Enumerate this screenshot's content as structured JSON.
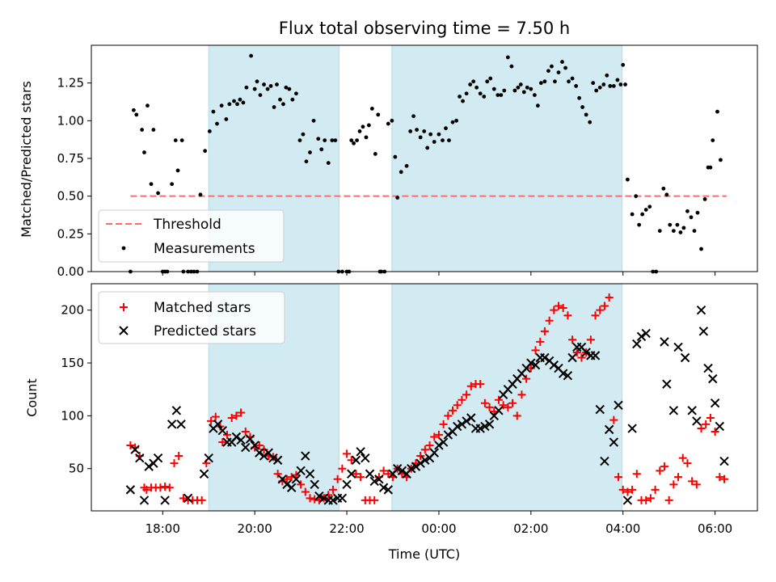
{
  "chart_data": [
    {
      "type": "scatter",
      "title": "Flux total observing time = 7.50 h",
      "xlabel": "",
      "ylabel": "Matched/Predicted stars",
      "ylim": [
        0,
        1.5
      ],
      "yticks": [
        "0.00",
        "0.25",
        "0.50",
        "0.75",
        "1.00",
        "1.25"
      ],
      "highlight_color": "#add8e6",
      "highlight_bands": [
        [
          19.0,
          21.83
        ],
        [
          22.98,
          27.98
        ]
      ],
      "threshold": {
        "name": "Threshold",
        "y": 0.5,
        "x_range": [
          17.3,
          30.25
        ],
        "color": "#ff6b6b",
        "style": "dashed"
      },
      "legend": {
        "location": "lower-left",
        "entries": [
          "Threshold",
          "Measurements"
        ]
      },
      "series": [
        {
          "name": "Measurements",
          "marker": "dot",
          "color": "#000000",
          "x": [
            17.3,
            17.37,
            17.43,
            17.55,
            17.6,
            17.67,
            17.75,
            17.8,
            17.9,
            18.0,
            18.05,
            18.1,
            18.2,
            18.28,
            18.33,
            18.42,
            18.45,
            18.55,
            18.62,
            18.68,
            18.75,
            18.82,
            18.92,
            19.02,
            19.1,
            19.18,
            19.28,
            19.38,
            19.45,
            19.55,
            19.62,
            19.68,
            19.75,
            19.82,
            19.92,
            20.0,
            20.05,
            20.12,
            20.2,
            20.28,
            20.35,
            20.42,
            20.48,
            20.55,
            20.62,
            20.68,
            20.75,
            20.82,
            20.9,
            20.98,
            21.05,
            21.12,
            21.2,
            21.28,
            21.38,
            21.45,
            21.52,
            21.6,
            21.68,
            21.75,
            21.82,
            21.9,
            22.0,
            22.05,
            22.1,
            22.15,
            22.22,
            22.28,
            22.35,
            22.42,
            22.48,
            22.55,
            22.62,
            22.68,
            22.72,
            22.75,
            22.82,
            22.9,
            22.98,
            23.05,
            23.1,
            23.18,
            23.3,
            23.38,
            23.45,
            23.52,
            23.6,
            23.68,
            23.75,
            23.82,
            23.9,
            24.0,
            24.08,
            24.15,
            24.22,
            24.3,
            24.38,
            24.45,
            24.52,
            24.6,
            24.68,
            24.75,
            24.82,
            24.9,
            24.98,
            25.05,
            25.12,
            25.2,
            25.28,
            25.35,
            25.42,
            25.5,
            25.58,
            25.65,
            25.72,
            25.78,
            25.85,
            25.92,
            26.0,
            26.08,
            26.15,
            26.22,
            26.3,
            26.38,
            26.45,
            26.52,
            26.6,
            26.68,
            26.75,
            26.82,
            26.9,
            26.98,
            27.05,
            27.12,
            27.2,
            27.28,
            27.35,
            27.42,
            27.5,
            27.58,
            27.65,
            27.72,
            27.8,
            27.88,
            27.95,
            28.0,
            28.05,
            28.1,
            28.2,
            28.28,
            28.35,
            28.42,
            28.5,
            28.58,
            28.65,
            28.72,
            28.8,
            28.88,
            28.95,
            29.02,
            29.1,
            29.18,
            29.25,
            29.32,
            29.4,
            29.48,
            29.55,
            29.62,
            29.7,
            29.78,
            29.85,
            29.9,
            29.95,
            30.05,
            30.12
          ],
          "y": [
            0.0,
            1.07,
            1.04,
            0.94,
            0.79,
            1.1,
            0.58,
            0.94,
            0.52,
            0.0,
            0.0,
            0.0,
            0.58,
            0.87,
            0.67,
            0.87,
            0.0,
            0.0,
            0.0,
            0.0,
            0.0,
            0.51,
            0.8,
            0.93,
            1.06,
            0.98,
            1.1,
            1.01,
            1.11,
            1.13,
            1.11,
            1.14,
            1.12,
            1.22,
            1.43,
            1.21,
            1.26,
            1.17,
            1.24,
            1.21,
            1.23,
            1.09,
            1.24,
            1.14,
            1.11,
            1.22,
            1.21,
            1.14,
            1.18,
            0.87,
            0.91,
            0.73,
            0.79,
            1.0,
            0.88,
            0.81,
            0.87,
            0.72,
            0.87,
            0.87,
            0.0,
            0.0,
            0.0,
            0.0,
            0.87,
            0.85,
            0.87,
            0.93,
            0.96,
            0.89,
            0.97,
            1.08,
            0.78,
            1.04,
            0.0,
            0.0,
            0.0,
            0.98,
            1.0,
            0.76,
            0.49,
            0.66,
            0.7,
            0.93,
            1.03,
            0.94,
            0.89,
            0.93,
            0.82,
            0.91,
            0.86,
            0.91,
            0.87,
            0.95,
            0.87,
            0.99,
            1.0,
            1.16,
            1.13,
            1.18,
            1.24,
            1.26,
            1.22,
            1.18,
            1.16,
            1.26,
            1.28,
            1.21,
            1.17,
            1.17,
            1.2,
            1.42,
            1.36,
            1.2,
            1.22,
            1.24,
            1.19,
            1.22,
            1.21,
            1.17,
            1.1,
            1.25,
            1.26,
            1.33,
            1.36,
            1.26,
            1.32,
            1.39,
            1.35,
            1.26,
            1.28,
            1.23,
            1.15,
            1.09,
            1.04,
            0.99,
            1.25,
            1.2,
            1.22,
            1.24,
            1.3,
            1.23,
            1.23,
            1.27,
            1.24,
            1.37,
            1.24,
            0.61,
            0.38,
            0.5,
            0.31,
            0.38,
            0.41,
            0.43,
            0.0,
            0.0,
            0.27,
            0.55,
            0.51,
            0.31,
            0.27,
            0.31,
            0.26,
            0.29,
            0.4,
            0.36,
            0.27,
            0.39,
            0.15,
            0.48,
            0.69,
            0.69,
            0.87,
            1.06,
            0.74
          ]
        }
      ]
    },
    {
      "type": "scatter",
      "title": "",
      "xlabel": "Time (UTC)",
      "ylabel": "Count",
      "ylim": [
        10,
        225
      ],
      "yticks": [
        "50",
        "100",
        "150",
        "200"
      ],
      "xlim": [
        16.45,
        30.92
      ],
      "xticks": [
        "18:00",
        "20:00",
        "22:00",
        "00:00",
        "02:00",
        "04:00",
        "06:00"
      ],
      "xtick_values": [
        18,
        20,
        22,
        24,
        26,
        28,
        30
      ],
      "legend": {
        "location": "upper-left",
        "entries": [
          "Matched stars",
          "Predicted stars"
        ]
      },
      "series": [
        {
          "name": "Matched stars",
          "marker": "plus",
          "color": "#ff0000",
          "x": [
            17.3,
            17.4,
            17.5,
            17.6,
            17.65,
            17.75,
            17.85,
            17.95,
            18.05,
            18.15,
            18.25,
            18.35,
            18.45,
            18.55,
            18.65,
            18.75,
            18.85,
            18.95,
            19.05,
            19.15,
            19.25,
            19.3,
            19.4,
            19.5,
            19.6,
            19.7,
            19.8,
            19.9,
            20.0,
            20.1,
            20.2,
            20.3,
            20.4,
            20.5,
            20.6,
            20.7,
            20.8,
            20.9,
            21.0,
            21.1,
            21.2,
            21.3,
            21.4,
            21.5,
            21.6,
            21.7,
            21.8,
            21.9,
            22.0,
            22.1,
            22.2,
            22.3,
            22.4,
            22.5,
            22.6,
            22.7,
            22.8,
            22.9,
            23.0,
            23.1,
            23.2,
            23.3,
            23.4,
            23.5,
            23.6,
            23.7,
            23.8,
            23.9,
            24.0,
            24.1,
            24.2,
            24.3,
            24.4,
            24.5,
            24.6,
            24.7,
            24.8,
            24.9,
            25.0,
            25.1,
            25.2,
            25.3,
            25.4,
            25.5,
            25.6,
            25.7,
            25.8,
            25.9,
            26.0,
            26.1,
            26.2,
            26.3,
            26.4,
            26.5,
            26.6,
            26.7,
            26.8,
            26.9,
            27.0,
            27.1,
            27.2,
            27.3,
            27.4,
            27.5,
            27.6,
            27.7,
            27.8,
            27.9,
            28.0,
            28.1,
            28.2,
            28.3,
            28.4,
            28.5,
            28.6,
            28.7,
            28.8,
            28.9,
            29.0,
            29.1,
            29.2,
            29.3,
            29.4,
            29.5,
            29.6,
            29.7,
            29.8,
            29.9,
            30.0,
            30.1,
            30.2
          ],
          "y": [
            72,
            70,
            62,
            32,
            30,
            32,
            32,
            32,
            33,
            32,
            55,
            62,
            22,
            20,
            20,
            20,
            20,
            55,
            95,
            99,
            90,
            75,
            82,
            98,
            100,
            103,
            85,
            80,
            70,
            72,
            68,
            62,
            61,
            45,
            38,
            40,
            42,
            44,
            35,
            28,
            22,
            21,
            20,
            22,
            25,
            30,
            40,
            50,
            64,
            58,
            45,
            42,
            20,
            20,
            20,
            42,
            48,
            45,
            42,
            50,
            45,
            42,
            50,
            55,
            62,
            68,
            72,
            80,
            82,
            92,
            100,
            105,
            110,
            115,
            120,
            128,
            130,
            130,
            112,
            108,
            104,
            115,
            110,
            108,
            112,
            100,
            120,
            135,
            145,
            162,
            170,
            180,
            190,
            200,
            204,
            202,
            195,
            172,
            160,
            155,
            160,
            172,
            195,
            200,
            204,
            212,
            96,
            42,
            30,
            28,
            30,
            45,
            20,
            20,
            22,
            30,
            48,
            52,
            20,
            35,
            42,
            60,
            55,
            38,
            35,
            88,
            92,
            98,
            85,
            42,
            40
          ],
          "note": ""
        },
        {
          "name": "Predicted stars",
          "marker": "x",
          "color": "#000000",
          "x": [
            17.3,
            17.4,
            17.5,
            17.6,
            17.7,
            17.8,
            17.9,
            18.05,
            18.2,
            18.3,
            18.4,
            18.55,
            18.9,
            19.0,
            19.1,
            19.2,
            19.3,
            19.4,
            19.5,
            19.6,
            19.7,
            19.8,
            19.9,
            20.0,
            20.1,
            20.2,
            20.3,
            20.4,
            20.5,
            20.6,
            20.7,
            20.8,
            20.9,
            21.0,
            21.1,
            21.2,
            21.3,
            21.4,
            21.5,
            21.6,
            21.7,
            21.8,
            21.9,
            22.0,
            22.1,
            22.2,
            22.3,
            22.4,
            22.5,
            22.6,
            22.7,
            22.8,
            22.9,
            23.0,
            23.1,
            23.2,
            23.3,
            23.4,
            23.5,
            23.6,
            23.7,
            23.8,
            23.9,
            24.0,
            24.1,
            24.2,
            24.3,
            24.4,
            24.5,
            24.6,
            24.7,
            24.8,
            24.9,
            25.0,
            25.1,
            25.2,
            25.3,
            25.4,
            25.5,
            25.6,
            25.7,
            25.8,
            25.9,
            26.0,
            26.1,
            26.2,
            26.3,
            26.4,
            26.5,
            26.6,
            26.7,
            26.8,
            26.9,
            27.0,
            27.1,
            27.2,
            27.3,
            27.4,
            27.5,
            27.6,
            27.7,
            27.8,
            27.9,
            28.1,
            28.2,
            28.3,
            28.4,
            28.5,
            28.9,
            28.95,
            29.1,
            29.2,
            29.35,
            29.5,
            29.6,
            29.7,
            29.75,
            29.85,
            29.95,
            30.0,
            30.1,
            30.2
          ],
          "y": [
            30,
            68,
            60,
            20,
            52,
            55,
            60,
            20,
            92,
            105,
            92,
            22,
            45,
            60,
            88,
            92,
            86,
            75,
            75,
            80,
            77,
            70,
            78,
            72,
            65,
            62,
            65,
            60,
            58,
            40,
            35,
            32,
            40,
            48,
            62,
            45,
            35,
            24,
            22,
            20,
            20,
            22,
            22,
            35,
            45,
            58,
            66,
            60,
            45,
            38,
            40,
            32,
            30,
            45,
            50,
            48,
            45,
            50,
            52,
            55,
            58,
            60,
            65,
            72,
            75,
            82,
            85,
            90,
            92,
            95,
            98,
            88,
            88,
            90,
            92,
            100,
            105,
            120,
            125,
            130,
            135,
            140,
            145,
            150,
            148,
            155,
            155,
            152,
            148,
            145,
            140,
            138,
            155,
            165,
            165,
            160,
            157,
            157,
            106,
            57,
            87,
            75,
            110,
            20,
            88,
            168,
            175,
            178,
            170,
            130,
            105,
            165,
            155,
            105,
            95,
            200,
            180,
            145,
            135,
            112,
            90,
            57
          ],
          "note": ""
        }
      ]
    }
  ]
}
